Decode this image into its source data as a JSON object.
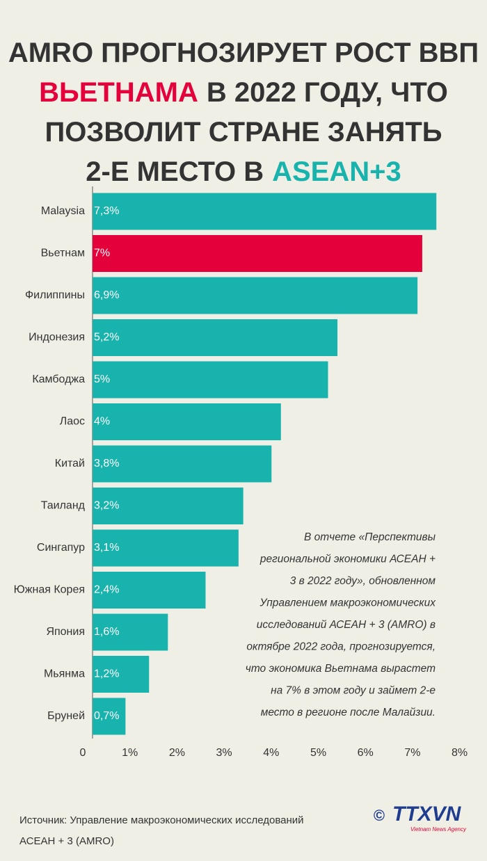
{
  "chart_data": {
    "type": "bar",
    "orientation": "horizontal",
    "title": [
      [
        {
          "text": "AMRO ПРОГНОЗИРУЕТ РОСТ ВВП"
        }
      ],
      [
        {
          "text": "ВЬЕТНАМА",
          "color": "#e4003a"
        },
        {
          "text": "В 2022 ГОДУ, ЧТО"
        }
      ],
      [
        {
          "text": "ПОЗВОЛИТ СТРАНЕ ЗАНЯТЬ"
        }
      ],
      [
        {
          "text": "2-Е МЕСТО В"
        },
        {
          "text": "ASEAN+3",
          "color": "#19b3ad"
        }
      ]
    ],
    "categories": [
      "Malaysia",
      "Вьетнам",
      "Филиппины",
      "Индонезия",
      "Камбоджа",
      "Лаос",
      "Китай",
      "Таиланд",
      "Сингапур",
      "Южная Корея",
      "Япония",
      "Мьянма",
      "Бруней"
    ],
    "values": [
      7.3,
      7,
      6.9,
      5.2,
      5,
      4,
      3.8,
      3.2,
      3.1,
      2.4,
      1.6,
      1.2,
      0.7
    ],
    "value_labels": [
      "7,3%",
      "7%",
      "6,9%",
      "5,2%",
      "5%",
      "4%",
      "3,8%",
      "3,2%",
      "3,1%",
      "2,4%",
      "1,6%",
      "1,2%",
      "0,7%"
    ],
    "colors": [
      "#19b3ad",
      "#e4003a",
      "#19b3ad",
      "#19b3ad",
      "#19b3ad",
      "#19b3ad",
      "#19b3ad",
      "#19b3ad",
      "#19b3ad",
      "#19b3ad",
      "#19b3ad",
      "#19b3ad",
      "#19b3ad"
    ],
    "xlim": [
      0,
      8
    ],
    "xticks": [
      0,
      {
        "value": 1,
        "label": "1%"
      },
      {
        "value": 2,
        "label": "2%"
      },
      {
        "value": 3,
        "label": "3%"
      },
      {
        "value": 4,
        "label": "4%"
      },
      {
        "value": 5,
        "label": "5%"
      },
      {
        "value": 6,
        "label": "6%"
      },
      {
        "value": 7,
        "label": "7%"
      },
      {
        "value": 8,
        "label": "8%"
      }
    ],
    "annotation": [
      "В отчете «Перспективы",
      "региональной экономики АСЕАН +",
      "3 в 2022 году», обновленном",
      "Управлением макроэкономических",
      "исследований АСЕАН + 3 (AMRO) в",
      "октябре 2022 года, прогнозируется,",
      "что экономика Вьетнама вырастет",
      "на 7% в этом году и займет 2-е",
      "место в регионе после Малайзии."
    ],
    "source": [
      "Источник: Управление макроэкономических исследований",
      "АСЕАН + 3 (AMRO)"
    ],
    "logo": {
      "symbol": "©",
      "name": "TTXVN",
      "subtitle": "Vietnam News Agency"
    }
  }
}
